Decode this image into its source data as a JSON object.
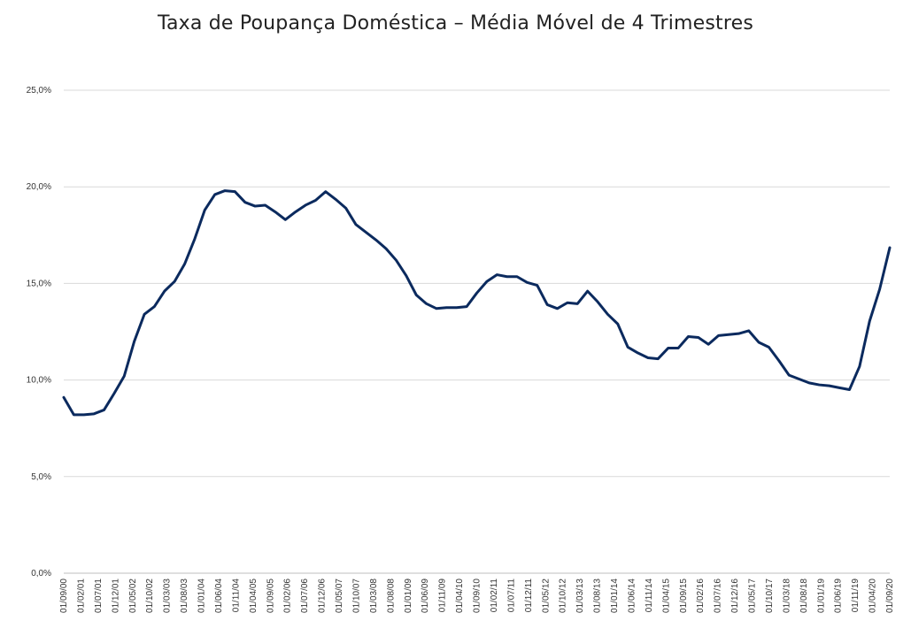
{
  "chart_data": {
    "type": "line",
    "title": "Taxa de Poupança Doméstica – Média Móvel de 4 Trimestres",
    "xlabel": "",
    "ylabel": "",
    "ylim": [
      0,
      25
    ],
    "y_ticks": [
      "0,0%",
      "5,0%",
      "10,0%",
      "15,0%",
      "20,0%",
      "25,0%"
    ],
    "x_tick_labels": [
      "01/09/00",
      "01/02/01",
      "01/07/01",
      "01/12/01",
      "01/05/02",
      "01/10/02",
      "01/03/03",
      "01/08/03",
      "01/01/04",
      "01/06/04",
      "01/11/04",
      "01/04/05",
      "01/09/05",
      "01/02/06",
      "01/07/06",
      "01/12/06",
      "01/05/07",
      "01/10/07",
      "01/03/08",
      "01/08/08",
      "01/01/09",
      "01/06/09",
      "01/11/09",
      "01/04/10",
      "01/09/10",
      "01/02/11",
      "01/07/11",
      "01/12/11",
      "01/05/12",
      "01/10/12",
      "01/03/13",
      "01/08/13",
      "01/01/14",
      "01/06/14",
      "01/11/14",
      "01/04/15",
      "01/09/15",
      "01/02/16",
      "01/07/16",
      "01/12/16",
      "01/05/17",
      "01/10/17",
      "01/03/18",
      "01/08/18",
      "01/01/19",
      "01/06/19",
      "01/11/19",
      "01/04/20",
      "01/09/20"
    ],
    "grid": true,
    "legend": "none",
    "line_color": "#0b2a5e",
    "series": [
      {
        "values": [
          9.1,
          8.2,
          8.2,
          8.25,
          8.45,
          9.3,
          10.2,
          12.0,
          13.4,
          13.8,
          14.6,
          15.1,
          16.0,
          17.3,
          18.8,
          19.6,
          19.8,
          19.75,
          19.2,
          19.0,
          19.05,
          18.7,
          18.3,
          18.7,
          19.05,
          19.3,
          19.75,
          19.35,
          18.9,
          18.05,
          17.65,
          17.25,
          16.8,
          16.2,
          15.4,
          14.4,
          13.95,
          13.7,
          13.75,
          13.75,
          13.8,
          14.5,
          15.1,
          15.45,
          15.35,
          15.35,
          15.05,
          14.9,
          13.9,
          13.7,
          14.0,
          13.95,
          14.6,
          14.05,
          13.4,
          12.9,
          11.7,
          11.4,
          11.15,
          11.1,
          11.65,
          11.65,
          12.25,
          12.2,
          11.85,
          12.3,
          12.35,
          12.4,
          12.55,
          11.95,
          11.7,
          11.0,
          10.25,
          10.05,
          9.85,
          9.75,
          9.7,
          9.6,
          9.5,
          10.7,
          13.05,
          14.7,
          16.85
        ]
      }
    ]
  }
}
